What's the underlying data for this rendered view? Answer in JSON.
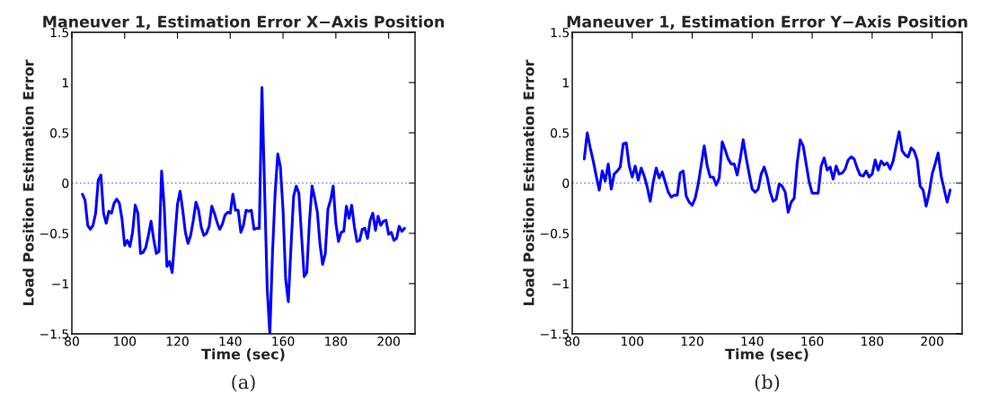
{
  "chart_data": [
    {
      "type": "line",
      "title": "Maneuver 1, Estimation Error X−Axis Position",
      "xlabel": "Time (sec)",
      "ylabel": "Load Position Estimation Error",
      "annotations": [
        "(a)"
      ],
      "x": [
        84,
        85,
        86,
        87,
        88,
        89,
        90,
        91,
        92,
        93,
        94,
        95,
        96,
        97,
        98,
        99,
        100,
        101,
        102,
        103,
        104,
        105,
        106,
        107,
        108,
        109,
        110,
        111,
        112,
        113,
        114,
        115,
        116,
        117,
        118,
        119,
        120,
        121,
        122,
        123,
        124,
        125,
        126,
        127,
        128,
        129,
        130,
        131,
        132,
        133,
        134,
        135,
        136,
        137,
        138,
        139,
        140,
        141,
        142,
        143,
        144,
        145,
        146,
        147,
        148,
        149,
        150,
        151,
        152,
        153,
        154,
        155,
        156,
        157,
        158,
        159,
        160,
        161,
        162,
        163,
        164,
        165,
        166,
        167,
        168,
        169,
        170,
        171,
        172,
        173,
        174,
        175,
        176,
        177,
        178,
        179,
        180,
        181,
        182,
        183,
        184,
        185,
        186,
        187,
        188,
        189,
        190,
        191,
        192,
        193,
        194,
        195,
        196,
        197,
        198,
        199,
        200,
        201,
        202,
        203,
        204,
        205,
        206
      ],
      "series": [
        {
          "color": "#0000ff",
          "values": [
            -0.11,
            -0.17,
            -0.42,
            -0.46,
            -0.42,
            -0.3,
            0.03,
            0.08,
            -0.3,
            -0.4,
            -0.28,
            -0.3,
            -0.2,
            -0.16,
            -0.2,
            -0.36,
            -0.62,
            -0.57,
            -0.63,
            -0.49,
            -0.22,
            -0.3,
            -0.7,
            -0.69,
            -0.64,
            -0.52,
            -0.38,
            -0.56,
            -0.7,
            -0.68,
            0.12,
            -0.24,
            -0.83,
            -0.78,
            -0.89,
            -0.55,
            -0.21,
            -0.08,
            -0.27,
            -0.49,
            -0.6,
            -0.52,
            -0.37,
            -0.19,
            -0.27,
            -0.44,
            -0.52,
            -0.5,
            -0.43,
            -0.23,
            -0.3,
            -0.39,
            -0.46,
            -0.41,
            -0.32,
            -0.29,
            -0.3,
            -0.11,
            -0.27,
            -0.27,
            -0.49,
            -0.42,
            -0.27,
            -0.28,
            -0.27,
            -0.46,
            -0.45,
            -0.45,
            0.95,
            -0.05,
            -1.05,
            -1.5,
            -0.7,
            -0.1,
            0.29,
            0.16,
            -0.27,
            -0.96,
            -1.18,
            -0.64,
            -0.13,
            -0.03,
            -0.1,
            -0.52,
            -0.93,
            -0.89,
            -0.38,
            -0.03,
            -0.15,
            -0.29,
            -0.61,
            -0.81,
            -0.7,
            -0.26,
            -0.17,
            -0.03,
            -0.4,
            -0.58,
            -0.49,
            -0.48,
            -0.23,
            -0.35,
            -0.22,
            -0.43,
            -0.58,
            -0.57,
            -0.46,
            -0.45,
            -0.55,
            -0.37,
            -0.3,
            -0.47,
            -0.33,
            -0.42,
            -0.38,
            -0.37,
            -0.51,
            -0.49,
            -0.57,
            -0.55,
            -0.43,
            -0.48,
            -0.45
          ]
        }
      ],
      "xlim": [
        80,
        210
      ],
      "xticks": [
        80,
        100,
        120,
        140,
        160,
        180,
        200
      ],
      "ylim": [
        -1.5,
        1.5
      ],
      "yticks": [
        -1.5,
        -1,
        -0.5,
        0,
        0.5,
        1,
        1.5
      ],
      "ref_lines": [
        {
          "axis": "y",
          "value": 0,
          "color": "#8080ff",
          "line_style": "dotted"
        }
      ],
      "grid": false,
      "legend": false,
      "marker": "none",
      "line_style": "solid"
    },
    {
      "type": "line",
      "title": "Maneuver 1, Estimation Error Y−Axis Position",
      "xlabel": "Time (sec)",
      "ylabel": "Load Position Estimation Error",
      "annotations": [
        "(b)"
      ],
      "x": [
        84,
        85,
        86,
        87,
        88,
        89,
        90,
        91,
        92,
        93,
        94,
        95,
        96,
        97,
        98,
        99,
        100,
        101,
        102,
        103,
        104,
        105,
        106,
        107,
        108,
        109,
        110,
        111,
        112,
        113,
        114,
        115,
        116,
        117,
        118,
        119,
        120,
        121,
        122,
        123,
        124,
        125,
        126,
        127,
        128,
        129,
        130,
        131,
        132,
        133,
        134,
        135,
        136,
        137,
        138,
        139,
        140,
        141,
        142,
        143,
        144,
        145,
        146,
        147,
        148,
        149,
        150,
        151,
        152,
        153,
        154,
        155,
        156,
        157,
        158,
        159,
        160,
        161,
        162,
        163,
        164,
        165,
        166,
        167,
        168,
        169,
        170,
        171,
        172,
        173,
        174,
        175,
        176,
        177,
        178,
        179,
        180,
        181,
        182,
        183,
        184,
        185,
        186,
        187,
        188,
        189,
        190,
        191,
        192,
        193,
        194,
        195,
        196,
        197,
        198,
        199,
        200,
        201,
        202,
        203,
        204,
        205,
        206
      ],
      "series": [
        {
          "color": "#0000ff",
          "values": [
            0.24,
            0.5,
            0.35,
            0.22,
            0.07,
            -0.07,
            0.12,
            0.02,
            0.19,
            -0.06,
            0.09,
            0.12,
            0.16,
            0.39,
            0.4,
            0.17,
            0.06,
            0.17,
            0.03,
            0.15,
            0.07,
            -0.04,
            -0.18,
            0.01,
            0.15,
            0.05,
            0.11,
            0.01,
            -0.09,
            -0.14,
            -0.12,
            -0.12,
            0.1,
            0.12,
            -0.13,
            -0.19,
            -0.22,
            -0.15,
            -0.01,
            0.18,
            0.37,
            0.17,
            0.06,
            0.06,
            -0.02,
            0.05,
            0.41,
            0.33,
            0.24,
            0.19,
            0.19,
            0.08,
            0.24,
            0.43,
            0.25,
            0.09,
            -0.06,
            -0.09,
            -0.06,
            0.09,
            0.16,
            0.06,
            -0.09,
            -0.18,
            -0.16,
            -0.01,
            -0.03,
            -0.09,
            -0.29,
            -0.19,
            -0.15,
            0.2,
            0.43,
            0.37,
            0.19,
            0.01,
            -0.1,
            -0.1,
            -0.1,
            0.17,
            0.25,
            0.13,
            0.16,
            0.04,
            0.17,
            0.09,
            0.1,
            0.14,
            0.23,
            0.26,
            0.24,
            0.15,
            0.08,
            0.07,
            0.12,
            0.06,
            0.09,
            0.23,
            0.13,
            0.22,
            0.18,
            0.2,
            0.14,
            0.22,
            0.37,
            0.51,
            0.32,
            0.28,
            0.26,
            0.35,
            0.32,
            0.23,
            -0.03,
            -0.07,
            -0.23,
            -0.1,
            0.09,
            0.19,
            0.3,
            0.07,
            -0.06,
            -0.19,
            -0.07
          ]
        }
      ],
      "xlim": [
        80,
        210
      ],
      "xticks": [
        80,
        100,
        120,
        140,
        160,
        180,
        200
      ],
      "ylim": [
        -1.5,
        1.5
      ],
      "yticks": [
        -1.5,
        -1,
        -0.5,
        0,
        0.5,
        1,
        1.5
      ],
      "ref_lines": [
        {
          "axis": "y",
          "value": 0,
          "color": "#8080ff",
          "line_style": "dotted"
        }
      ],
      "grid": false,
      "legend": false,
      "marker": "none",
      "line_style": "solid"
    }
  ]
}
